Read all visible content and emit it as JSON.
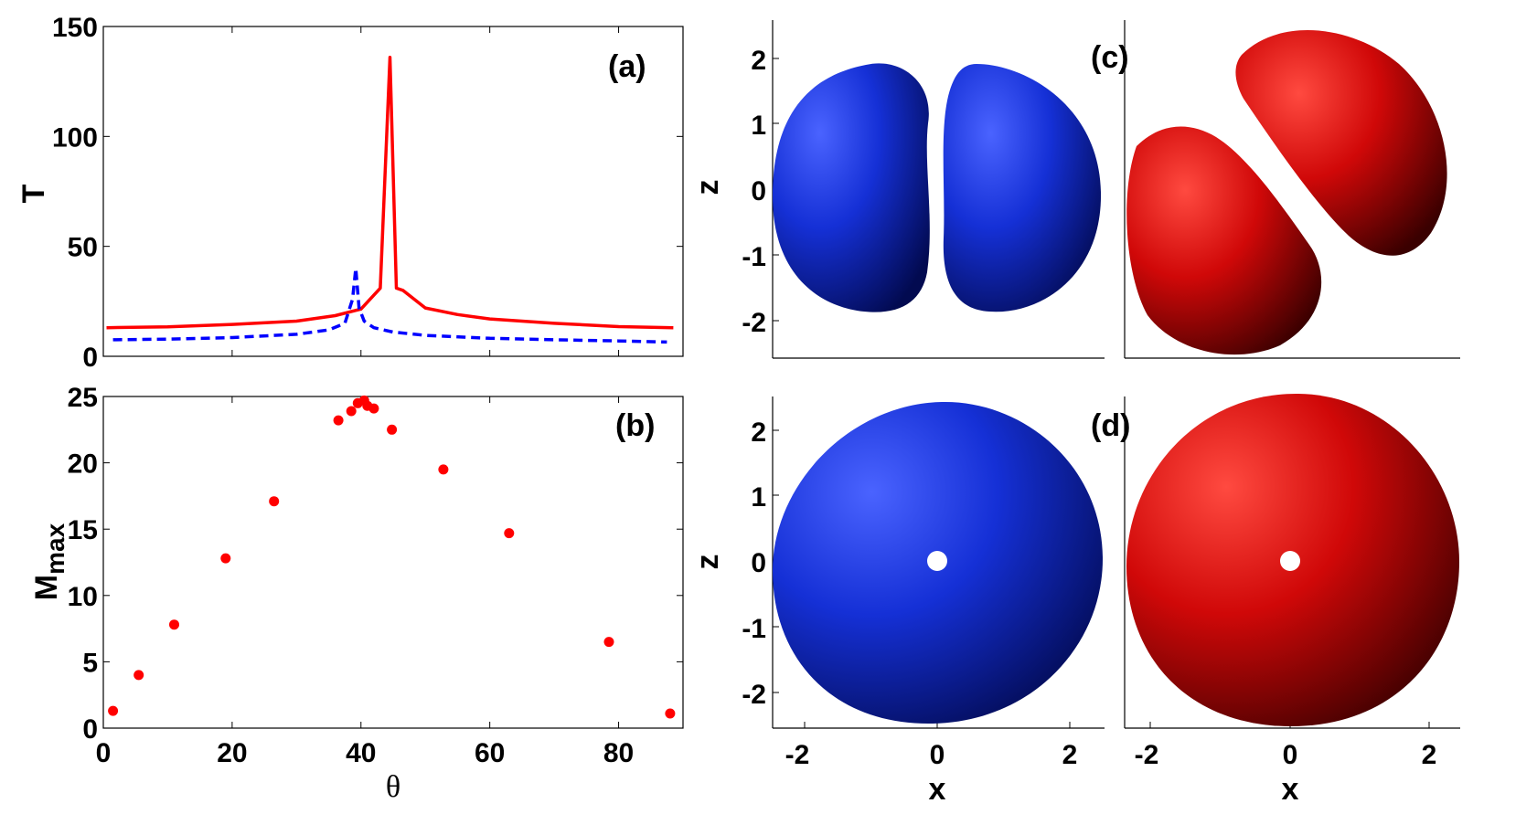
{
  "chart_data": [
    {
      "id": "a",
      "type": "line",
      "panel_label": "(a)",
      "ylabel": "T",
      "xlabel": "",
      "xlim": [
        0,
        90
      ],
      "ylim": [
        0,
        150
      ],
      "yticks": [
        0,
        50,
        100,
        150
      ],
      "series": [
        {
          "name": "solid",
          "color": "#ff0000",
          "style": "solid",
          "x": [
            0.5,
            10,
            20,
            30,
            36,
            40,
            43,
            44.5,
            45.5,
            46.5,
            50,
            55,
            60,
            70,
            80,
            88.5
          ],
          "y": [
            13,
            13.4,
            14.5,
            16,
            18.5,
            21.5,
            31,
            136,
            31,
            30,
            22,
            19,
            17,
            15,
            13.5,
            13
          ]
        },
        {
          "name": "dashed",
          "color": "#0000ff",
          "style": "dashed",
          "x": [
            1.5,
            10,
            20,
            30,
            35,
            37.5,
            38.7,
            39.2,
            39.7,
            40.5,
            42,
            45,
            50,
            60,
            70,
            80,
            87.5
          ],
          "y": [
            7.5,
            7.8,
            8.5,
            10,
            12,
            15,
            26,
            40,
            22,
            16,
            13,
            11,
            9.5,
            8.2,
            7.5,
            7,
            6.5
          ]
        }
      ]
    },
    {
      "id": "b",
      "type": "scatter",
      "panel_label": "(b)",
      "ylabel": "M",
      "ylabel_sub": "max",
      "xlabel": "θ",
      "xlim": [
        0,
        90
      ],
      "ylim": [
        0,
        25
      ],
      "xticks": [
        0,
        20,
        40,
        60,
        80
      ],
      "yticks": [
        0,
        5,
        10,
        15,
        20,
        25
      ],
      "series": [
        {
          "name": "Mmax",
          "color": "#ff0000",
          "x": [
            1.5,
            5.5,
            11,
            19,
            26.5,
            36.5,
            38.5,
            39.5,
            40.5,
            41,
            42,
            44.8,
            52.8,
            63,
            78.5,
            88
          ],
          "y": [
            1.3,
            4,
            7.8,
            12.8,
            17.1,
            23.2,
            23.9,
            24.5,
            24.7,
            24.3,
            24.1,
            22.5,
            19.5,
            14.7,
            6.5,
            1.1
          ]
        }
      ]
    },
    {
      "id": "c",
      "type": "surface",
      "panel_label": "(c)",
      "ylabel": "z",
      "yticks": [
        "2",
        "1",
        "0",
        "-1",
        "-2"
      ],
      "colors": [
        "#0a1fc0",
        "#c00000"
      ]
    },
    {
      "id": "d",
      "type": "surface",
      "panel_label": "(d)",
      "xlabel": "x",
      "ylabel": "z",
      "xticks": [
        "-2",
        "0",
        "2"
      ],
      "yticks": [
        "2",
        "1",
        "0",
        "-1",
        "-2"
      ],
      "colors": [
        "#0a1fc0",
        "#c00000"
      ]
    }
  ]
}
